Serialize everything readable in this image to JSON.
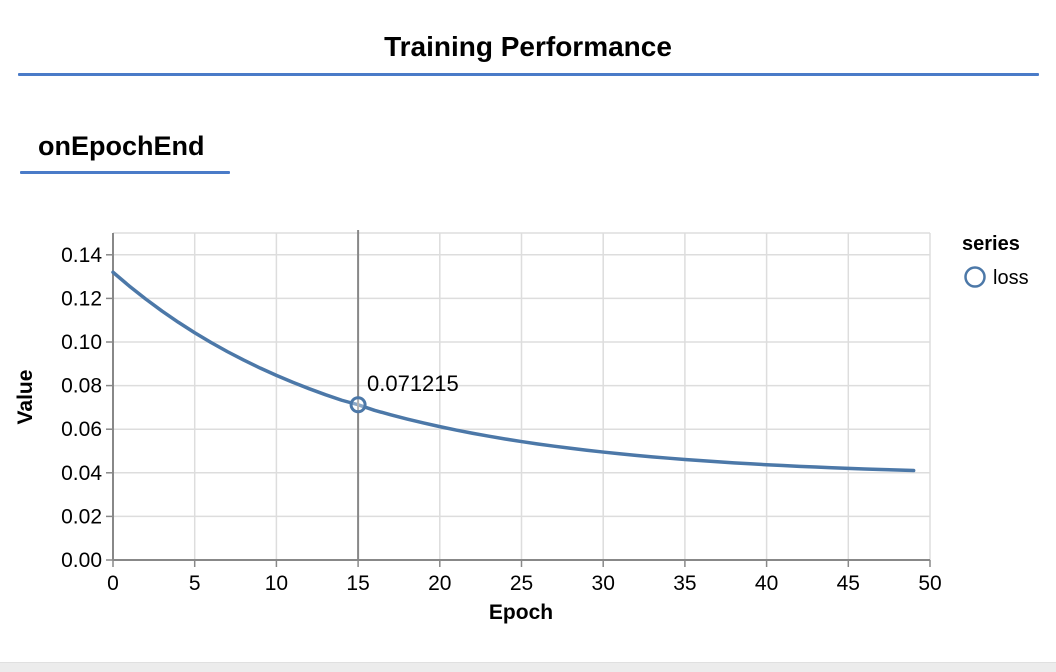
{
  "header": {
    "title": "Training Performance"
  },
  "section": {
    "title": "onEpochEnd"
  },
  "theme": {
    "accent_rule_color": "#4a7bc8",
    "background": "#ffffff",
    "bottom_strip_color": "#ececec"
  },
  "chart_data": {
    "type": "line",
    "title": "",
    "xlabel": "Epoch",
    "ylabel": "Value",
    "xlim": [
      0,
      50
    ],
    "ylim": [
      0,
      0.15
    ],
    "x_ticks": [
      0,
      5,
      10,
      15,
      20,
      25,
      30,
      35,
      40,
      45,
      50
    ],
    "y_ticks": [
      0.0,
      0.02,
      0.04,
      0.06,
      0.08,
      0.1,
      0.12,
      0.14
    ],
    "grid": true,
    "grid_color": "#dddddd",
    "axis_color": "#888888",
    "legend": {
      "title": "series",
      "position": "right",
      "items": [
        {
          "label": "loss",
          "color": "#4c78a8",
          "marker": "open-circle"
        }
      ]
    },
    "annotation": {
      "x": 15,
      "y": 0.071215,
      "label": "0.071215",
      "rule_color": "#888888"
    },
    "series": [
      {
        "name": "loss",
        "color": "#4c78a8",
        "x": [
          0,
          1,
          2,
          3,
          4,
          5,
          6,
          7,
          8,
          9,
          10,
          11,
          12,
          13,
          14,
          15,
          16,
          17,
          18,
          19,
          20,
          21,
          22,
          23,
          24,
          25,
          26,
          27,
          28,
          29,
          30,
          31,
          32,
          33,
          34,
          35,
          36,
          37,
          38,
          39,
          40,
          41,
          42,
          43,
          44,
          45,
          46,
          47,
          48,
          49
        ],
        "values": [
          0.132,
          0.125645,
          0.11972,
          0.114195,
          0.109044,
          0.104241,
          0.099762,
          0.095587,
          0.091694,
          0.088064,
          0.084679,
          0.081523,
          0.078581,
          0.075837,
          0.073279,
          0.071215,
          0.06867,
          0.066597,
          0.064663,
          0.062861,
          0.06118,
          0.059613,
          0.058152,
          0.056789,
          0.055519,
          0.054335,
          0.05323,
          0.052201,
          0.051241,
          0.050346,
          0.049511,
          0.048733,
          0.048007,
          0.047331,
          0.0467,
          0.046112,
          0.045563,
          0.045052,
          0.044575,
          0.044131,
          0.043716,
          0.04333,
          0.042969,
          0.042633,
          0.04232,
          0.042028,
          0.041756,
          0.041502,
          0.041265,
          0.041044
        ]
      }
    ]
  }
}
